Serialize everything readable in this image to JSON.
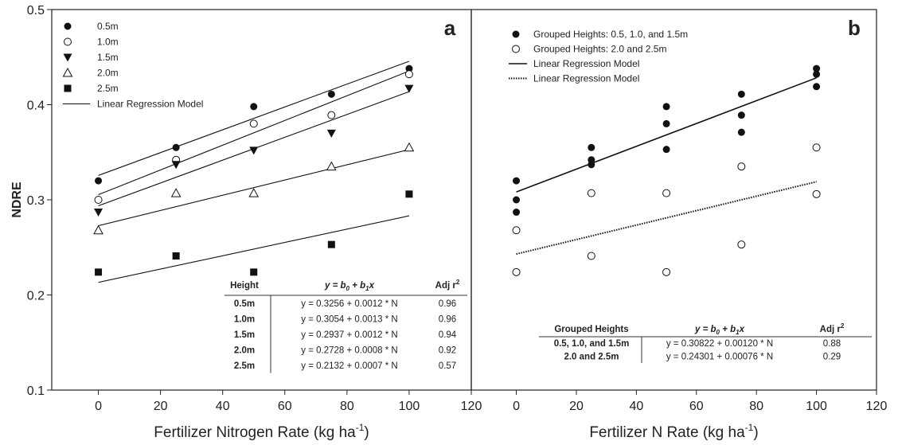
{
  "chart_data": [
    {
      "type": "scatter",
      "panel_label": "a",
      "xlabel": "Fertilizer Nitrogen Rate (kg ha",
      "xlabel_sup": "-1",
      "xlabel_end": ")",
      "ylabel": "NDRE",
      "xlim": [
        -15,
        120
      ],
      "ylim": [
        0.1,
        0.5
      ],
      "x_ticks": [
        0,
        20,
        40,
        60,
        80,
        100,
        120
      ],
      "y_ticks": [
        0.1,
        0.2,
        0.3,
        0.4,
        0.5
      ],
      "y_tick_labels": [
        "0.1",
        "0.2",
        "0.3",
        "0.4",
        "0.5"
      ],
      "grid": false,
      "legend_position": "top-left",
      "series": [
        {
          "name": "0.5m",
          "marker": "circle-filled",
          "x": [
            0,
            25,
            50,
            75,
            100
          ],
          "y": [
            0.32,
            0.355,
            0.398,
            0.411,
            0.438
          ],
          "fit": [
            0.3256,
            0.0012
          ]
        },
        {
          "name": "1.0m",
          "marker": "circle-open",
          "x": [
            0,
            25,
            50,
            75,
            100
          ],
          "y": [
            0.3,
            0.342,
            0.38,
            0.389,
            0.432
          ],
          "fit": [
            0.3054,
            0.0013
          ]
        },
        {
          "name": "1.5m",
          "marker": "triangle-down-filled",
          "x": [
            0,
            25,
            50,
            75,
            100
          ],
          "y": [
            0.287,
            0.337,
            0.352,
            0.37,
            0.417
          ],
          "fit": [
            0.2937,
            0.0012
          ]
        },
        {
          "name": "2.0m",
          "marker": "triangle-up-open",
          "x": [
            0,
            25,
            50,
            75,
            100
          ],
          "y": [
            0.268,
            0.307,
            0.307,
            0.335,
            0.355
          ],
          "fit": [
            0.2728,
            0.0008
          ]
        },
        {
          "name": "2.5m",
          "marker": "square-filled",
          "x": [
            0,
            25,
            50,
            75,
            100
          ],
          "y": [
            0.224,
            0.241,
            0.224,
            0.253,
            0.306
          ],
          "fit": [
            0.2132,
            0.0007
          ]
        }
      ],
      "legend_line_label": "Linear Regression Model",
      "table": {
        "headers": [
          "Height",
          "y = b",
          "0",
          " + b",
          "1",
          "x",
          "Adj r",
          "2"
        ],
        "rows": [
          [
            "0.5m",
            "y = 0.3256 + 0.0012 * N",
            "0.96"
          ],
          [
            "1.0m",
            "y = 0.3054 + 0.0013 * N",
            "0.96"
          ],
          [
            "1.5m",
            "y = 0.2937 + 0.0012 * N",
            "0.94"
          ],
          [
            "2.0m",
            "y = 0.2728 + 0.0008 * N",
            "0.92"
          ],
          [
            "2.5m",
            "y = 0.2132 + 0.0007 * N",
            "0.57"
          ]
        ]
      }
    },
    {
      "type": "scatter",
      "panel_label": "b",
      "xlabel": "Fertilizer N Rate (kg ha",
      "xlabel_sup": "-1",
      "xlabel_end": ")",
      "xlim": [
        -15,
        120
      ],
      "ylim": [
        0.1,
        0.5
      ],
      "x_ticks": [
        0,
        20,
        40,
        60,
        80,
        100,
        120
      ],
      "grid": false,
      "legend_position": "top-left",
      "series": [
        {
          "name": "Grouped Heights: 0.5, 1.0, and 1.5m",
          "marker": "circle-filled",
          "x": [
            0,
            0,
            0,
            25,
            25,
            25,
            50,
            50,
            50,
            75,
            75,
            75,
            100,
            100,
            100
          ],
          "y": [
            0.32,
            0.3,
            0.287,
            0.355,
            0.342,
            0.337,
            0.398,
            0.38,
            0.353,
            0.411,
            0.389,
            0.371,
            0.438,
            0.432,
            0.419
          ],
          "fit": [
            0.30822,
            0.0012
          ],
          "fit_style": "solid"
        },
        {
          "name": "Grouped Heights: 2.0 and 2.5m",
          "marker": "circle-open",
          "x": [
            0,
            0,
            25,
            25,
            50,
            50,
            75,
            75,
            100,
            100
          ],
          "y": [
            0.268,
            0.224,
            0.307,
            0.241,
            0.307,
            0.224,
            0.335,
            0.253,
            0.355,
            0.306
          ],
          "fit": [
            0.24301,
            0.00076
          ],
          "fit_style": "dotted"
        }
      ],
      "legend_lines": [
        {
          "label": "Linear Regression Model",
          "style": "solid"
        },
        {
          "label": "Linear Regression Model",
          "style": "dotted"
        }
      ],
      "table": {
        "headers": [
          "Grouped Heights",
          "y = b",
          "0",
          " + b",
          "1",
          "x",
          "Adj r",
          "2"
        ],
        "rows": [
          [
            "0.5, 1.0, and 1.5m",
            "y = 0.30822 + 0.00120 * N",
            "0.88"
          ],
          [
            "2.0 and 2.5m",
            "y = 0.24301 + 0.00076 * N",
            "0.29"
          ]
        ]
      }
    }
  ]
}
